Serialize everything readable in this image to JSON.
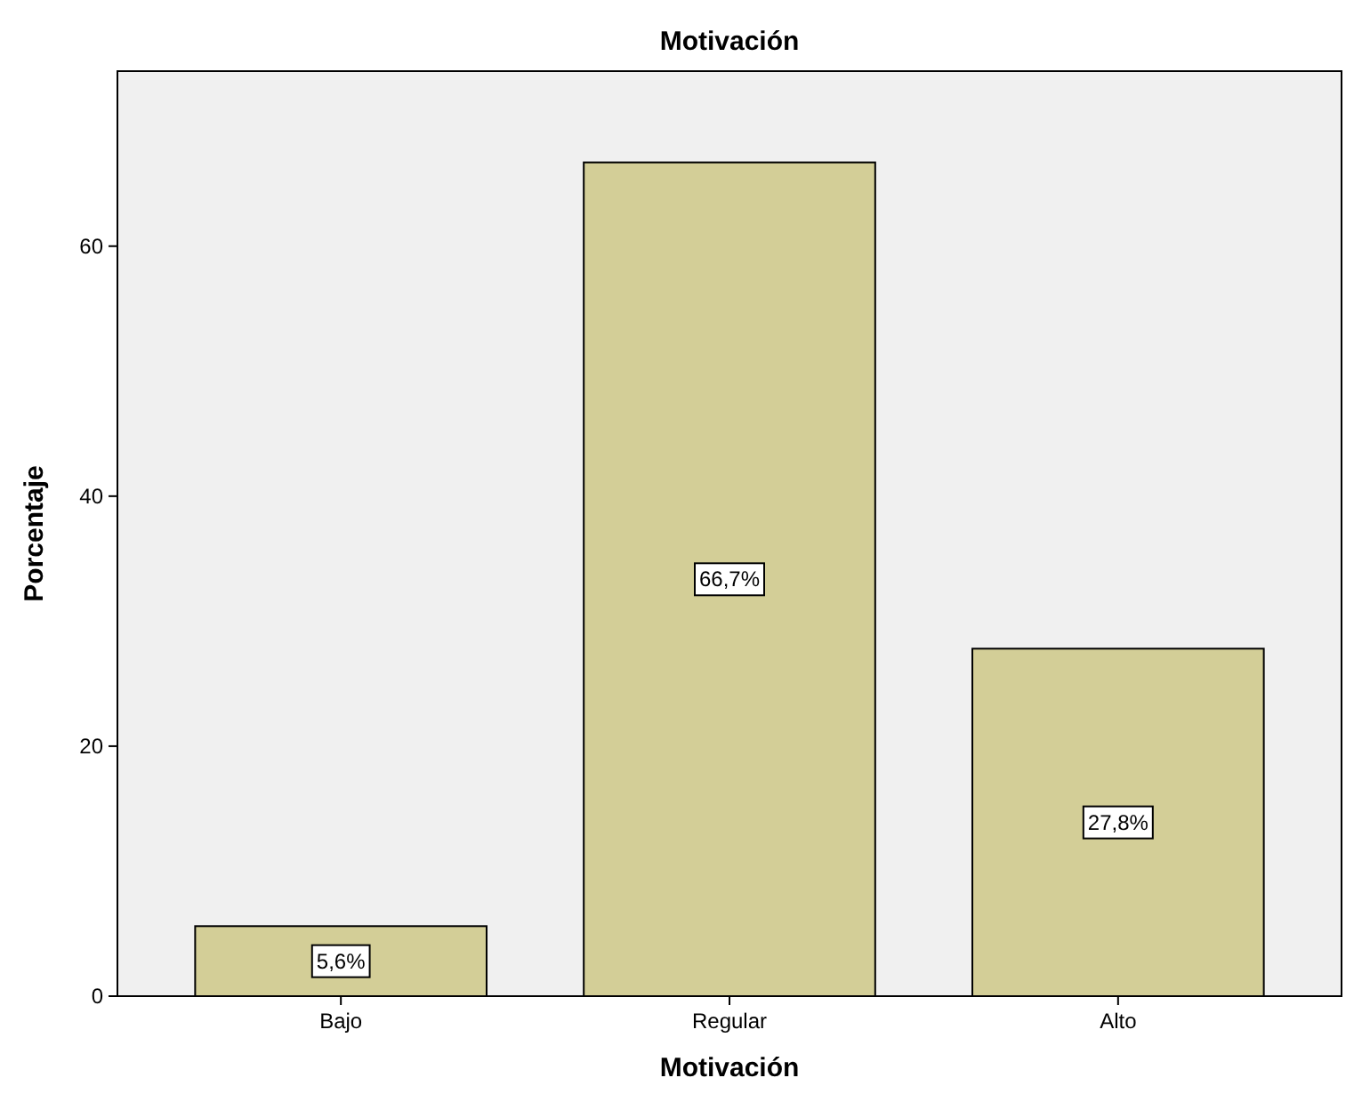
{
  "chart_data": {
    "type": "bar",
    "title": "Motivación",
    "xlabel": "Motivación",
    "ylabel": "Porcentaje",
    "categories": [
      "Bajo",
      "Regular",
      "Alto"
    ],
    "values": [
      5.6,
      66.7,
      27.8
    ],
    "value_labels": [
      "5,6%",
      "66,7%",
      "27,8%"
    ],
    "color": "#d3ce97",
    "ylim": [
      0,
      74
    ],
    "yticks": [
      0,
      20,
      40,
      60
    ],
    "grid": false
  }
}
